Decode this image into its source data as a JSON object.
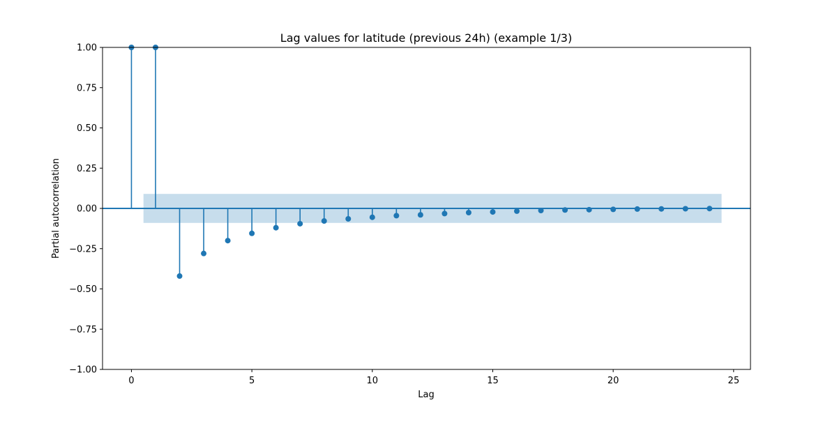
{
  "chart_data": {
    "type": "scatter",
    "subtype": "stem",
    "title": "Lag values for latitude (previous 24h) (example 1/3)",
    "xlabel": "Lag",
    "ylabel": "Partial autocorrelation",
    "xlim": [
      -1.2,
      25.7
    ],
    "ylim": [
      -1.0,
      1.0
    ],
    "xticks": [
      0,
      5,
      10,
      15,
      20,
      25
    ],
    "xtick_labels": [
      "0",
      "5",
      "10",
      "15",
      "20",
      "25"
    ],
    "yticks": [
      1.0,
      0.75,
      0.5,
      0.25,
      0.0,
      -0.25,
      -0.5,
      -0.75,
      -1.0
    ],
    "ytick_labels": [
      "1.00",
      "0.75",
      "0.50",
      "0.25",
      "0.00",
      "−0.25",
      "−0.50",
      "−0.75",
      "−1.00"
    ],
    "grid": false,
    "series": [
      {
        "x": [
          0,
          1,
          2,
          3,
          4,
          5,
          6,
          7,
          8,
          9,
          10,
          11,
          12,
          13,
          14,
          15,
          16,
          17,
          18,
          19,
          20,
          21,
          22,
          23,
          24
        ],
        "values": [
          1.0,
          1.0,
          -0.42,
          -0.28,
          -0.2,
          -0.155,
          -0.12,
          -0.095,
          -0.078,
          -0.065,
          -0.055,
          -0.045,
          -0.04,
          -0.032,
          -0.026,
          -0.022,
          -0.017,
          -0.013,
          -0.01,
          -0.008,
          -0.006,
          -0.004,
          -0.003,
          -0.002,
          -0.001
        ]
      }
    ],
    "confidence_band": {
      "x_range": [
        0.5,
        24.5
      ],
      "lower": -0.09,
      "upper": 0.09
    },
    "colors": {
      "stem": "#1f77b4",
      "band": "#1f77b4",
      "band_opacity": 0.25
    }
  }
}
